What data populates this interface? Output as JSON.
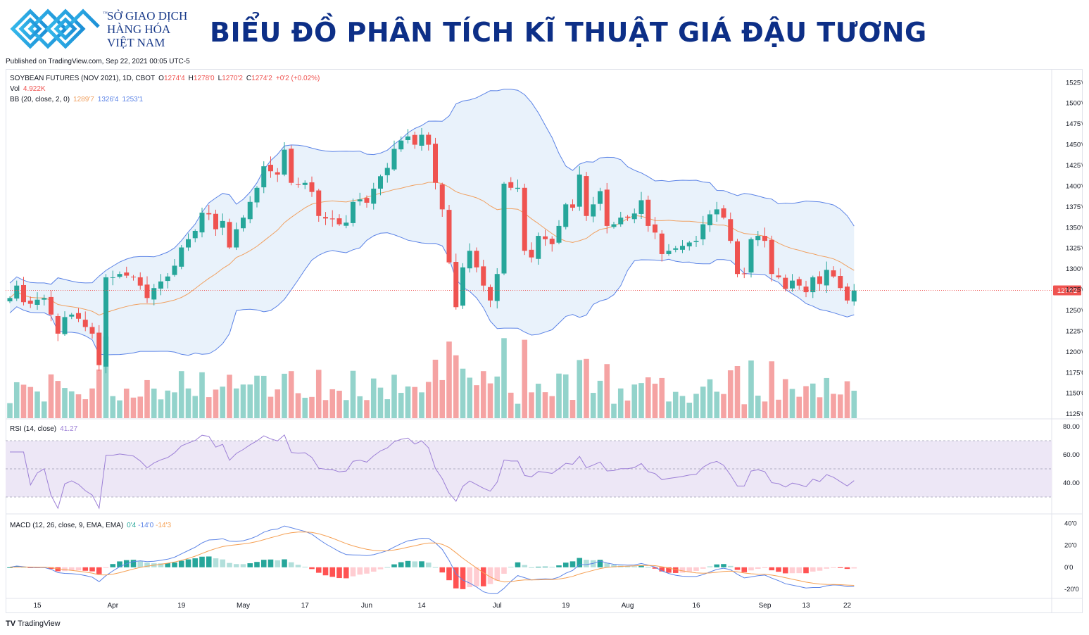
{
  "header": {
    "brand_line1": "SỞ GIAO DỊCH",
    "brand_line2": "HÀNG HÓA",
    "brand_line3": "VIỆT NAM",
    "trademark": "™",
    "title": "BIỂU ĐỒ PHÂN TÍCH KĨ THUẬT GIÁ ĐẬU TƯƠNG",
    "published": "Published on TradingView.com, Sep 22, 2021 00:05 UTC-5"
  },
  "legend": {
    "symbol": "SOYBEAN FUTURES (NOV 2021), 1D, CBOT",
    "o_label": "O",
    "o_value": "1274'4",
    "h_label": "H",
    "h_value": "1278'0",
    "l_label": "L",
    "l_value": "1270'2",
    "c_label": "C",
    "c_value": "1274'2",
    "change": "+0'2 (+0.02%)",
    "vol_label": "Vol",
    "vol_value": "4.922K",
    "bb_label": "BB (20, close, 2, 0)",
    "bb_basis": "1289'7",
    "bb_upper": "1326'4",
    "bb_lower": "1253'1",
    "rsi_label": "RSI (14, close)",
    "rsi_value": "41.27",
    "macd_label": "MACD (12, 26, close, 9, EMA, EMA)",
    "macd_hist": "0'4",
    "macd_line": "-14'0",
    "macd_signal": "-14'3"
  },
  "footer": {
    "brand": "TradingView"
  },
  "colors": {
    "up": "#26a69a",
    "down": "#ef5350",
    "vol_up": "#93d3cb",
    "vol_down": "#f5a3a3",
    "bb_band": "#5b83e6",
    "bb_basis": "#f0a060",
    "bb_fill": "#e9f2fb",
    "rsi_line": "#9c7fd6",
    "rsi_fill": "#ede7f6",
    "macd_line": "#5b83e6",
    "macd_signal": "#f59f52"
  },
  "chart_data": {
    "type": "candlestick",
    "symbol": "SOYBEAN FUTURES (NOV 2021)",
    "interval": "1D",
    "price_axis_labels": [
      "1525'0",
      "1500'0",
      "1475'0",
      "1450'0",
      "1425'0",
      "1400'0",
      "1375'0",
      "1350'0",
      "1325'0",
      "1300'0",
      "1275'0",
      "1250'0",
      "1225'0",
      "1200'0",
      "1175'0",
      "1150'0",
      "1125'0"
    ],
    "price_range": [
      1120,
      1538
    ],
    "last_price_label": "1274'2",
    "last_price": 1274.25,
    "rsi_axis_labels": [
      "80.00",
      "60.00",
      "40.00"
    ],
    "rsi_range": [
      20,
      84
    ],
    "rsi_levels": [
      70,
      50,
      30
    ],
    "macd_axis_labels": [
      "40'0",
      "20'0",
      "0'0",
      "-20'0"
    ],
    "macd_range": [
      -27,
      46
    ],
    "x_labels": [
      {
        "i": 4,
        "label": "15"
      },
      {
        "i": 15,
        "label": "Apr"
      },
      {
        "i": 25,
        "label": "19"
      },
      {
        "i": 34,
        "label": "May"
      },
      {
        "i": 43,
        "label": "17"
      },
      {
        "i": 52,
        "label": "Jun"
      },
      {
        "i": 60,
        "label": "14"
      },
      {
        "i": 71,
        "label": "Jul"
      },
      {
        "i": 81,
        "label": "19"
      },
      {
        "i": 90,
        "label": "Aug"
      },
      {
        "i": 100,
        "label": "16"
      },
      {
        "i": 110,
        "label": "Sep"
      },
      {
        "i": 116,
        "label": "13"
      },
      {
        "i": 122,
        "label": "22"
      }
    ],
    "closes": [
      1265,
      1280,
      1260,
      1258,
      1263,
      1265,
      1245,
      1222,
      1242,
      1245,
      1240,
      1230,
      1222,
      1184,
      1290,
      1290,
      1294,
      1292,
      1290,
      1280,
      1265,
      1277,
      1285,
      1291,
      1304,
      1326,
      1336,
      1346,
      1368,
      1366,
      1348,
      1358,
      1326,
      1348,
      1362,
      1381,
      1398,
      1424,
      1418,
      1414,
      1444,
      1404,
      1402,
      1404,
      1393,
      1364,
      1361,
      1360,
      1354,
      1356,
      1381,
      1384,
      1380,
      1397,
      1412,
      1422,
      1445,
      1455,
      1460,
      1450,
      1462,
      1450,
      1404,
      1372,
      1308,
      1254,
      1302,
      1322,
      1302,
      1280,
      1262,
      1294,
      1403,
      1398,
      1398,
      1322,
      1314,
      1340,
      1336,
      1330,
      1352,
      1378,
      1374,
      1414,
      1364,
      1378,
      1394,
      1352,
      1354,
      1362,
      1362,
      1367,
      1383,
      1352,
      1344,
      1318,
      1322,
      1325,
      1328,
      1332,
      1334,
      1354,
      1366,
      1372,
      1362,
      1334,
      1294,
      1294,
      1336,
      1340,
      1334,
      1294,
      1290,
      1276,
      1286,
      1280,
      1272,
      1290,
      1282,
      1299,
      1291,
      1277,
      1262,
      1274
    ]
  }
}
